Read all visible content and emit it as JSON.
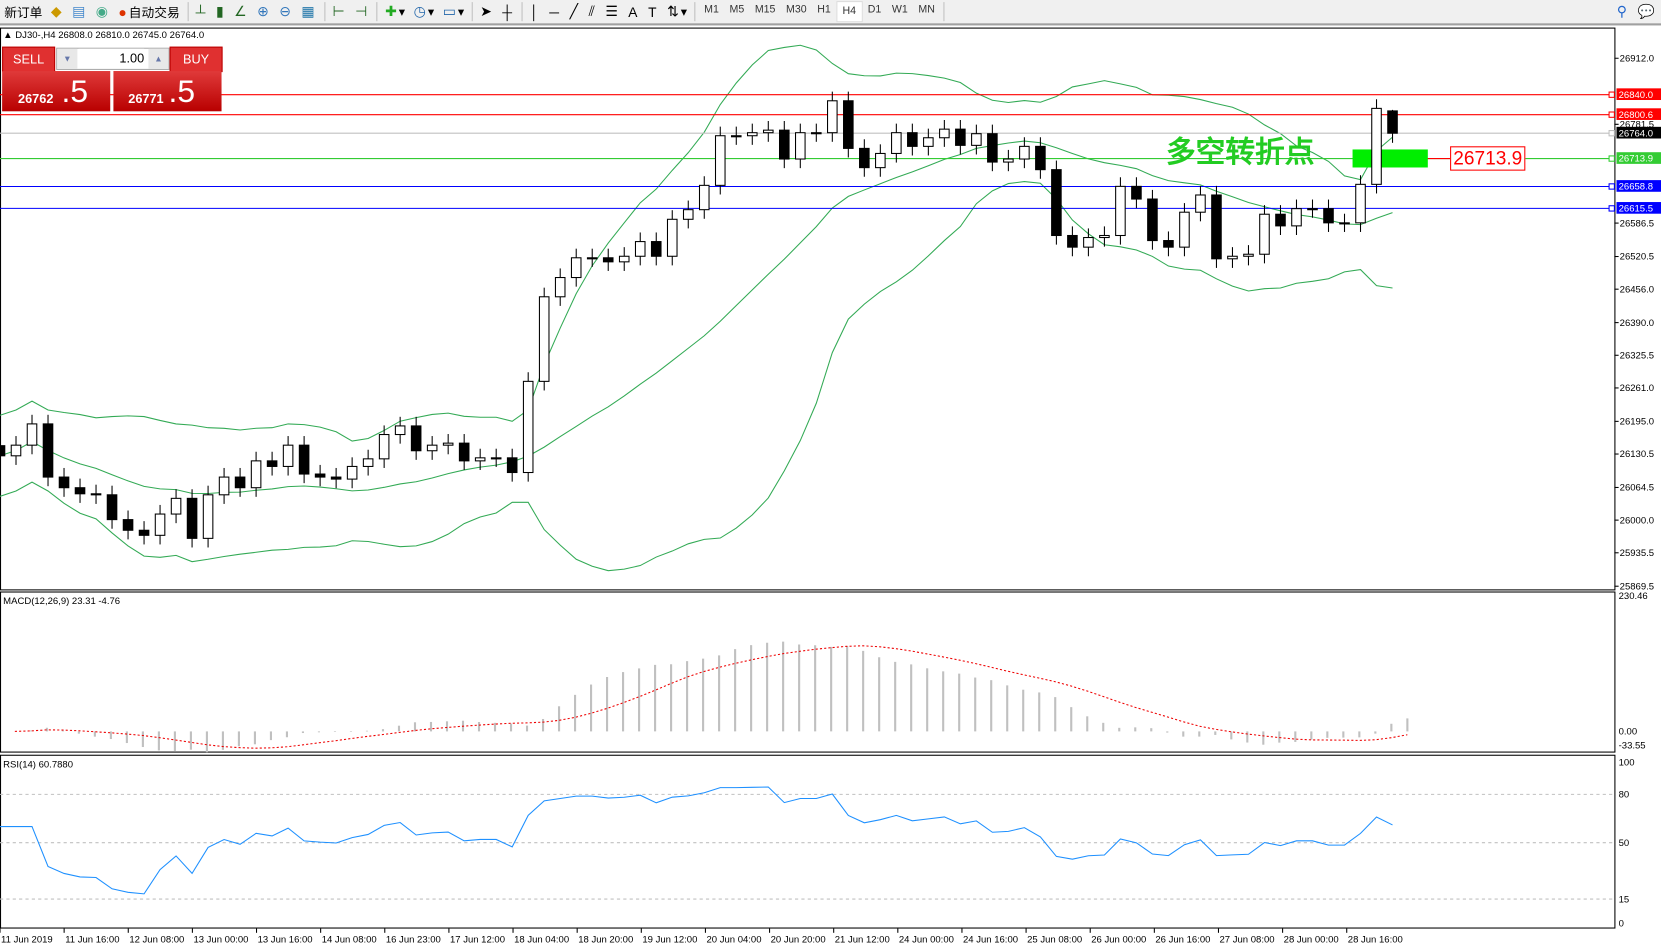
{
  "toolbar": {
    "new_order": "新订单",
    "auto_trading": "自动交易",
    "icons": [
      "new-order-icon",
      "market-watch-icon",
      "data-window-icon",
      "navigator-icon",
      "auto-trading-icon",
      "bar-chart-icon",
      "candlestick-icon",
      "line-chart-icon",
      "zoom-in-icon",
      "zoom-out-icon",
      "tile-windows-icon",
      "chart-shift-icon",
      "auto-scroll-icon",
      "indicators-icon",
      "periods-icon",
      "templates-icon",
      "cursor-icon",
      "crosshair-icon",
      "vertical-line-icon",
      "horizontal-line-icon",
      "trendline-icon",
      "channel-icon",
      "fibonacci-icon",
      "text-icon",
      "text-label-icon",
      "arrows-icon",
      "search-icon",
      "chat-icon"
    ],
    "timeframes": [
      "M1",
      "M5",
      "M15",
      "M30",
      "H1",
      "H4",
      "D1",
      "W1",
      "MN"
    ],
    "active_timeframe": "H4"
  },
  "chart": {
    "header": "DJ30-,H4  26808.0 26810.0 26745.0 26764.0",
    "sell_label": "SELL",
    "buy_label": "BUY",
    "lot": "1.00",
    "sell_price_main": "26762",
    "sell_price_pip": ".5",
    "buy_price_main": "26771",
    "buy_price_pip": ".5",
    "annotation_text": "多空转折点",
    "annotation_price": "26713.9"
  },
  "chart_data": {
    "type": "candlestick",
    "symbol": "DJ30-",
    "timeframe": "H4",
    "last_bar": {
      "open": 26808.0,
      "high": 26810.0,
      "low": 26745.0,
      "close": 26764.0
    },
    "close": [
      26127,
      26148,
      26190,
      26085,
      26064,
      26052,
      26050,
      26001,
      25980,
      25970,
      26012,
      26043,
      25964,
      26050,
      26085,
      26064,
      26117,
      26106,
      26148,
      26091,
      26085,
      26081,
      26106,
      26121,
      26169,
      26186,
      26137,
      26148,
      26152,
      26117,
      26123,
      26123,
      26094,
      26274,
      26441,
      26479,
      26518,
      26518,
      26510,
      26521,
      26550,
      26521,
      26594,
      26613,
      26661,
      26759,
      26759,
      26765,
      26770,
      26713,
      26765,
      26765,
      26828,
      26734,
      26696,
      26724,
      26765,
      26738,
      26755,
      26772,
      26740,
      26763,
      26707,
      26713,
      26738,
      26692,
      26562,
      26539,
      26558,
      26562,
      26659,
      26634,
      26552,
      26539,
      26608,
      26642,
      26516,
      26521,
      26525,
      26604,
      26581,
      26615,
      26615,
      26587,
      26587,
      26663,
      26813,
      26764
    ],
    "ylim": [
      25869.5,
      26912.0
    ],
    "price_ticks": [
      "26912.0",
      "26781.5",
      "26586.5",
      "26520.5",
      "26456.0",
      "26390.0",
      "26325.5",
      "26261.0",
      "26195.0",
      "26130.5",
      "26064.5",
      "26000.0",
      "25935.5",
      "25869.5"
    ],
    "time_ticks": [
      "11 Jun 2019",
      "11 Jun 16:00",
      "12 Jun 08:00",
      "13 Jun 00:00",
      "13 Jun 16:00",
      "14 Jun 08:00",
      "16 Jun 23:00",
      "17 Jun 12:00",
      "18 Jun 04:00",
      "18 Jun 20:00",
      "19 Jun 12:00",
      "20 Jun 04:00",
      "20 Jun 20:00",
      "21 Jun 12:00",
      "24 Jun 00:00",
      "24 Jun 16:00",
      "25 Jun 08:00",
      "26 Jun 00:00",
      "26 Jun 16:00",
      "27 Jun 08:00",
      "28 Jun 00:00",
      "28 Jun 16:00"
    ],
    "hlines": [
      {
        "price": 26840.0,
        "label": "26840.0",
        "color": "#ff0000"
      },
      {
        "price": 26800.6,
        "label": "26800.6",
        "color": "#ff0000"
      },
      {
        "price": 26764.0,
        "label": "26764.0",
        "color": "#c0c0c0",
        "tag": "#000000"
      },
      {
        "price": 26713.9,
        "label": "26713.9",
        "color": "#33cc33"
      },
      {
        "price": 26658.8,
        "label": "26658.8",
        "color": "#0000ff"
      },
      {
        "price": 26615.5,
        "label": "26615.5",
        "color": "#0000ff"
      }
    ],
    "bands_color": "#33aa55",
    "macd": {
      "label": "MACD(12,26,9) 23.31 -4.76",
      "top": "230.46",
      "zero": "0.00",
      "bottom": "-33.55",
      "ylim": [
        -33.55,
        230.46
      ]
    },
    "rsi": {
      "label": "RSI(14) 60.7880",
      "ticks": [
        "100",
        "80",
        "50",
        "15",
        "0"
      ],
      "levels": [
        80,
        50,
        15
      ],
      "color": "#1e90ff"
    }
  }
}
